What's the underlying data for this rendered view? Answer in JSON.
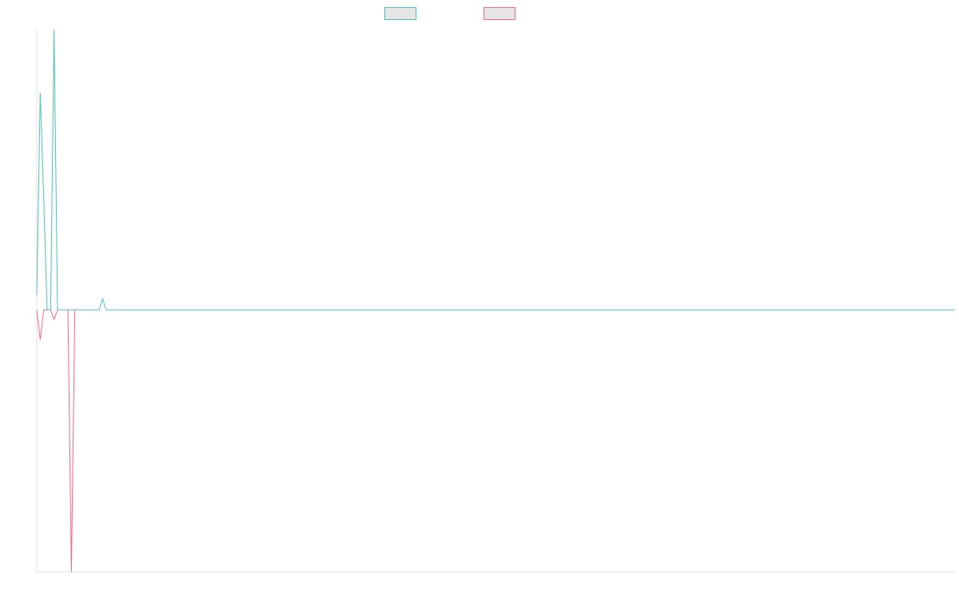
{
  "chart_data": {
    "type": "line",
    "title": "",
    "xlabel": "",
    "ylabel": "",
    "grid": false,
    "legend_placement": "top-center",
    "series_count": 2,
    "x_count": 266,
    "ylim": [
      -0.7,
      0.7
    ],
    "series": [
      {
        "color": "#4bc0c0",
        "legend_fill": "#e6e6e6",
        "points": [
          {
            "i": 0,
            "y": 0.04
          },
          {
            "i": 1,
            "y": 0.58
          },
          {
            "i": 2,
            "y": 0.3
          },
          {
            "i": 3,
            "y": 0.0
          },
          {
            "i": 4,
            "y": 0.0
          },
          {
            "i": 5,
            "y": 0.75
          },
          {
            "i": 6,
            "y": 0.0
          },
          {
            "i": 18,
            "y": 0.0
          },
          {
            "i": 19,
            "y": 0.03
          },
          {
            "i": 20,
            "y": 0.0
          },
          {
            "i": 265,
            "y": 0.0
          }
        ]
      },
      {
        "color": "#ff6384",
        "legend_fill": "#e6e6e6",
        "points": [
          {
            "i": 0,
            "y": 0.0
          },
          {
            "i": 1,
            "y": -0.08
          },
          {
            "i": 2,
            "y": 0.0
          },
          {
            "i": 4,
            "y": 0.0
          },
          {
            "i": 5,
            "y": -0.025
          },
          {
            "i": 6,
            "y": 0.0
          },
          {
            "i": 9,
            "y": 0.0
          },
          {
            "i": 10,
            "y": -0.7
          },
          {
            "i": 11,
            "y": 0.0
          },
          {
            "i": 12,
            "y": 0.0
          }
        ]
      }
    ]
  },
  "legend": {
    "items": [
      {
        "label": "",
        "border": "#4bc0c0",
        "fill": "#e6e6e6"
      },
      {
        "label": "",
        "border": "#ff6384",
        "fill": "#e6e6e6"
      }
    ]
  },
  "axes": {
    "line_color": "#e0e0e0"
  }
}
